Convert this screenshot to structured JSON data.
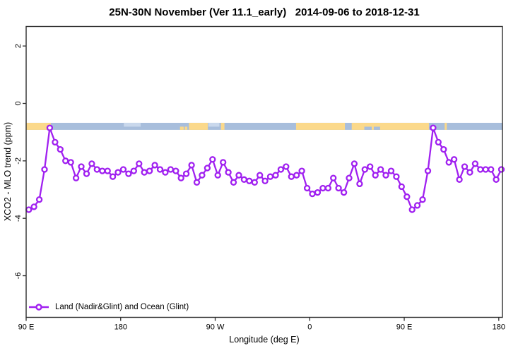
{
  "title": "25N-30N November (Ver 11.1_early)   2014-09-06 to 2018-12-31",
  "chart_data": {
    "type": "line",
    "title": "25N-30N November (Ver 11.1_early)   2014-09-06 to 2018-12-31",
    "xlabel": "Longitude (deg E)",
    "ylabel": "XCO2 - MLO trend (ppm)",
    "legend_position": "bottom-left",
    "grid": false,
    "xlim": [
      90,
      543.5
    ],
    "ylim": [
      -7.45,
      2.68
    ],
    "x_ticks": [
      {
        "lon": 90,
        "label": "90 E"
      },
      {
        "lon": 180,
        "label": "180"
      },
      {
        "lon": 270,
        "label": "90 W"
      },
      {
        "lon": 360,
        "label": "0"
      },
      {
        "lon": 450,
        "label": "90 E"
      },
      {
        "lon": 540,
        "label": "180"
      }
    ],
    "y_ticks": [
      2,
      0,
      -2,
      -4,
      -6
    ],
    "series": [
      {
        "name": "Land (Nadir&Glint) and Ocean (Glint)",
        "color": "#A020F0",
        "marker": "open-circle",
        "x_start": 92.5,
        "x_step": 5,
        "values": [
          -3.7,
          -3.6,
          -3.35,
          -2.3,
          -0.85,
          -1.35,
          -1.6,
          -2.0,
          -2.05,
          -2.6,
          -2.2,
          -2.45,
          -2.1,
          -2.3,
          -2.35,
          -2.35,
          -2.55,
          -2.4,
          -2.3,
          -2.45,
          -2.35,
          -2.1,
          -2.4,
          -2.35,
          -2.15,
          -2.3,
          -2.4,
          -2.3,
          -2.35,
          -2.6,
          -2.45,
          -2.15,
          -2.75,
          -2.5,
          -2.25,
          -1.95,
          -2.5,
          -2.05,
          -2.4,
          -2.75,
          -2.5,
          -2.65,
          -2.7,
          -2.75,
          -2.5,
          -2.7,
          -2.55,
          -2.5,
          -2.3,
          -2.2,
          -2.55,
          -2.5,
          -2.35,
          -2.95,
          -3.15,
          -3.1,
          -2.95,
          -2.95,
          -2.6,
          -2.95,
          -3.1,
          -2.6,
          -2.1,
          -2.8,
          -2.3,
          -2.2,
          -2.5,
          -2.3,
          -2.5,
          -2.35,
          -2.55,
          -2.9,
          -3.25,
          -3.7,
          -3.55,
          -3.35,
          -2.35,
          -0.85,
          -1.35,
          -1.6,
          -2.05,
          -1.95,
          -2.65,
          -2.2,
          -2.4,
          -2.1,
          -2.3,
          -2.3,
          -2.3,
          -2.65,
          -2.3
        ]
      }
    ],
    "map_band": {
      "description": "land/ocean strip for 25N-30N latitude band",
      "y_top_val": -0.675,
      "y_bot_val": -0.92,
      "ocean_color": "#A8BEDC",
      "land_color": "#FBD98B",
      "shallow_color": "#C9D8EC",
      "ocean_extent": [
        90,
        543.5
      ],
      "land_segments": [
        [
          90,
          113.5
        ],
        [
          245,
          263
        ],
        [
          275.5,
          278.8
        ],
        [
          347,
          393.5
        ],
        [
          400,
          473.5
        ],
        [
          488.5,
          490.5
        ]
      ],
      "shallow_patches": [
        [
          183,
          199
        ],
        [
          263.5,
          274
        ]
      ],
      "land_lower_specks": [
        [
          236.5,
          240
        ],
        [
          241,
          243.5
        ]
      ],
      "ocean_lower_specks": [
        [
          412,
          419
        ],
        [
          421,
          427
        ]
      ]
    }
  },
  "colors": {
    "series": "#A020F0",
    "axis": "#2e2e2e",
    "text": "#000000"
  }
}
